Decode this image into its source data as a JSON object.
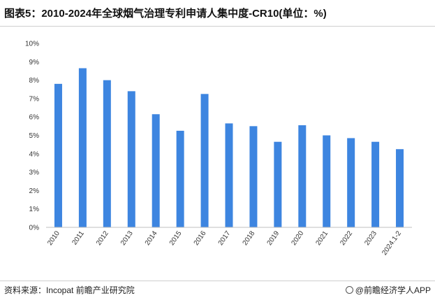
{
  "title": "图表5：2010-2024年全球烟气治理专利申请人集中度-CR10(单位：%)",
  "source": "资料来源：Incopat 前瞻产业研究院",
  "brand": "@前瞻经济学人APP",
  "colors": {
    "bar": "#3d85e0",
    "axis": "#bfbfbf",
    "text": "#333333"
  },
  "chart_data": {
    "type": "bar",
    "categories": [
      "2010",
      "2011",
      "2012",
      "2013",
      "2014",
      "2015",
      "2016",
      "2017",
      "2018",
      "2019",
      "2020",
      "2021",
      "2022",
      "2023",
      "2024.1-2"
    ],
    "values": [
      7.8,
      8.65,
      8.0,
      7.4,
      6.15,
      5.25,
      7.25,
      5.65,
      5.5,
      4.65,
      5.55,
      5.0,
      4.85,
      4.65,
      4.25
    ],
    "y_ticks": [
      "0%",
      "1%",
      "2%",
      "3%",
      "4%",
      "5%",
      "6%",
      "7%",
      "8%",
      "9%",
      "10%"
    ],
    "ylim": [
      0,
      10
    ],
    "unit": "%",
    "grid": false,
    "legend": "none",
    "xlabel": "",
    "ylabel": ""
  }
}
